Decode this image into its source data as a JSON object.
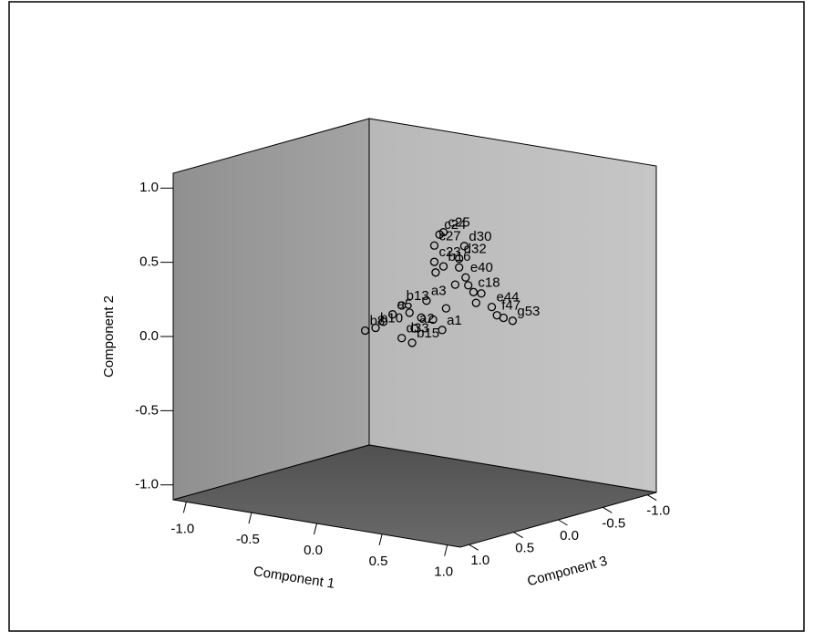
{
  "chart_data": {
    "type": "scatter3d",
    "xlabel": "Component 1",
    "ylabel": "Component 2",
    "zlabel": "Component 3",
    "xlim": [
      -1.1,
      1.1
    ],
    "ylim": [
      -1.1,
      1.1
    ],
    "zlim": [
      -1.1,
      1.1
    ],
    "xticks": [
      {
        "value": -1,
        "label": "-1.0"
      },
      {
        "value": -0.5,
        "label": "-0.5"
      },
      {
        "value": 0,
        "label": "0.0"
      },
      {
        "value": 0.5,
        "label": "0.5"
      },
      {
        "value": 1,
        "label": "1.0"
      }
    ],
    "yticks": [
      {
        "value": -1,
        "label": "-1.0"
      },
      {
        "value": -0.5,
        "label": "-0.5"
      },
      {
        "value": 0,
        "label": "0.0"
      },
      {
        "value": 0.5,
        "label": "0.5"
      },
      {
        "value": 1,
        "label": "1.0"
      }
    ],
    "zticks": [
      {
        "value": -1,
        "label": "-1.0"
      },
      {
        "value": -0.5,
        "label": "-0.5"
      },
      {
        "value": 0,
        "label": "0.0"
      },
      {
        "value": 0.5,
        "label": "0.5"
      },
      {
        "value": 1,
        "label": "1.0"
      }
    ],
    "labels": [
      "c24",
      "c25",
      "c27",
      "d30",
      "d32",
      "c23",
      "b16",
      "e40",
      "b13",
      "a5",
      "a3",
      "c18",
      "e44",
      "b8",
      "b10",
      "d33",
      "a2",
      "b15",
      "a1",
      "f47",
      "g53",
      null,
      null,
      null,
      null,
      null,
      null,
      null,
      null,
      null,
      null,
      null,
      null
    ],
    "x": [
      0.19,
      0.22,
      0.15,
      0.38,
      0.34,
      0.15,
      0.22,
      0.39,
      -0.1,
      -0.17,
      0.09,
      0.45,
      0.59,
      -0.38,
      -0.3,
      -0.1,
      0.0,
      -0.02,
      0.21,
      0.63,
      0.75,
      -0.24,
      -0.04,
      0.14,
      0.31,
      0.34,
      0.47,
      0.51,
      0.68,
      0.24,
      0.05,
      0.16,
      0.41
    ],
    "y": [
      0.69,
      0.71,
      0.61,
      0.64,
      0.55,
      0.5,
      0.48,
      0.43,
      0.17,
      0.1,
      0.23,
      0.34,
      0.26,
      -0.04,
      -0.01,
      -0.05,
      0.03,
      -0.07,
      0.05,
      0.21,
      0.19,
      0.04,
      0.13,
      0.11,
      0.37,
      0.49,
      0.27,
      0.34,
      0.2,
      0.2,
      0.11,
      0.43,
      0.38
    ],
    "z": [
      0,
      0,
      0,
      0,
      0,
      0,
      0,
      0,
      0,
      0,
      0,
      0,
      0,
      0,
      0,
      0,
      0,
      0,
      0,
      0,
      0,
      0,
      0,
      0,
      0,
      0,
      0,
      0,
      0,
      0,
      0,
      0,
      0
    ]
  }
}
